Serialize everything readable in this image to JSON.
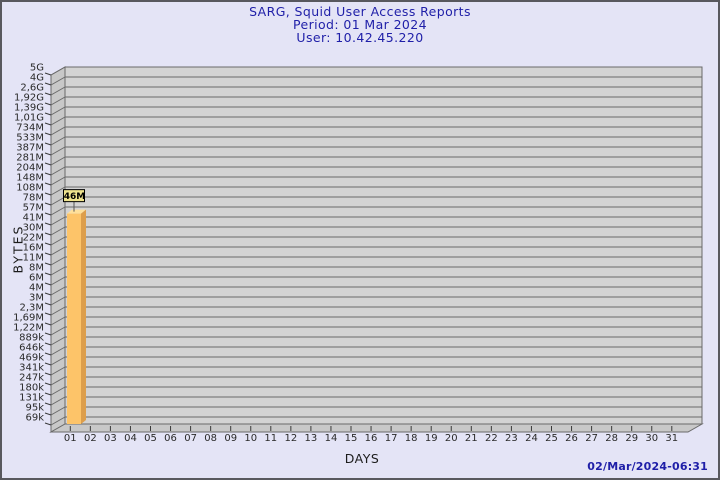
{
  "header": {
    "title": "SARG, Squid User Access Reports",
    "period": "Period: 01 Mar 2024",
    "user": "User: 10.42.45.220"
  },
  "footer": {
    "generated": "02/Mar/2024-06:31"
  },
  "chart_data": {
    "type": "bar",
    "title": "SARG, Squid User Access Reports",
    "subtitle1": "Period: 01 Mar 2024",
    "subtitle2": "User: 10.42.45.220",
    "xlabel": "DAYS",
    "ylabel": "BYTES",
    "y_scale": "log",
    "grid": true,
    "legend_position": "none",
    "y_tick_labels": [
      "5G",
      "4G",
      "2,6G",
      "1,92G",
      "1,39G",
      "1,01G",
      "734M",
      "533M",
      "387M",
      "281M",
      "204M",
      "148M",
      "108M",
      "78M",
      "57M",
      "41M",
      "30M",
      "22M",
      "16M",
      "11M",
      "8M",
      "6M",
      "4M",
      "3M",
      "2,3M",
      "1,69M",
      "1,22M",
      "889k",
      "646k",
      "469k",
      "341k",
      "247k",
      "180k",
      "131k",
      "95k",
      "69k"
    ],
    "ylim": [
      69000,
      5000000000
    ],
    "categories": [
      "01",
      "02",
      "03",
      "04",
      "05",
      "06",
      "07",
      "08",
      "09",
      "10",
      "11",
      "12",
      "13",
      "14",
      "15",
      "16",
      "17",
      "18",
      "19",
      "20",
      "21",
      "22",
      "23",
      "24",
      "25",
      "26",
      "27",
      "28",
      "29",
      "30",
      "31"
    ],
    "values": [
      46000000,
      0,
      0,
      0,
      0,
      0,
      0,
      0,
      0,
      0,
      0,
      0,
      0,
      0,
      0,
      0,
      0,
      0,
      0,
      0,
      0,
      0,
      0,
      0,
      0,
      0,
      0,
      0,
      0,
      0,
      0
    ],
    "bar_labels": [
      "46M",
      "",
      "",
      "",
      "",
      "",
      "",
      "",
      "",
      "",
      "",
      "",
      "",
      "",
      "",
      "",
      "",
      "",
      "",
      "",
      "",
      "",
      "",
      "",
      "",
      "",
      "",
      "",
      "",
      "",
      ""
    ],
    "colors": {
      "page_bg": "#E4E4F6",
      "frame_border": "#58585E",
      "title_text": "#1F1FA8",
      "plot_bg": "#D3D3D3",
      "wall_fill": "#C8C8C8",
      "grid_line": "#6A6A6A",
      "tick_text": "#2A2A2A",
      "bar_front": "#FDC469",
      "bar_side": "#DD9E4B",
      "bar_top": "#FFE09A",
      "bar_label_box": "#EFE48E",
      "bar_label_border": "#000000",
      "timestamp_text": "#1F1FA8"
    }
  }
}
